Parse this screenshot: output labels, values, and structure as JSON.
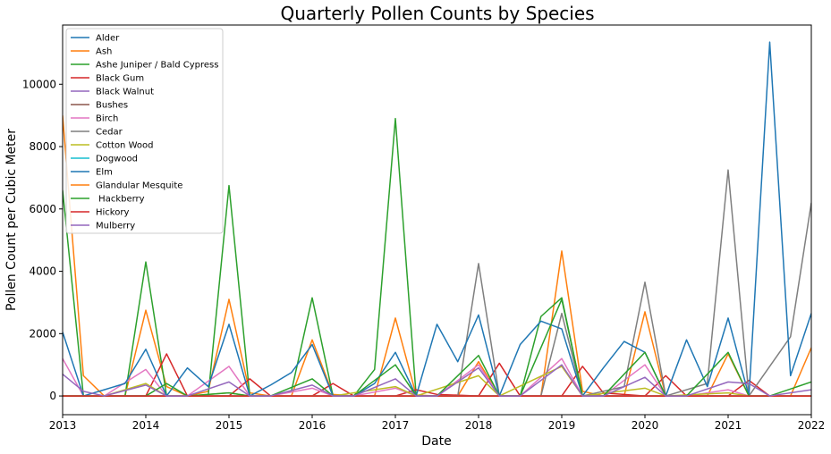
{
  "chart_data": {
    "type": "line",
    "title": "Quarterly Pollen Counts by Species",
    "xlabel": "Date",
    "ylabel": "Pollen Count per Cubic Meter",
    "xlim": [
      2013.0,
      2022.0
    ],
    "ylim": [
      -600,
      11900
    ],
    "x_ticks": [
      "2013",
      "2014",
      "2015",
      "2016",
      "2017",
      "2018",
      "2019",
      "2020",
      "2021",
      "2022"
    ],
    "y_ticks": [
      "0",
      "2000",
      "4000",
      "6000",
      "8000",
      "10000"
    ],
    "y_tick_values": [
      0,
      2000,
      4000,
      6000,
      8000,
      10000
    ],
    "grid": false,
    "legend_position": "upper left",
    "series": [
      {
        "name": "Alder",
        "color": "#1f77b4",
        "x": [
          2013.0,
          2013.25,
          2017.0,
          2018.0,
          2019.0,
          2020.0,
          2021.0,
          2022.0
        ],
        "y": [
          0,
          0,
          0,
          0,
          0,
          0,
          0,
          0
        ]
      },
      {
        "name": "Ash",
        "color": "#ff7f0e",
        "x": [
          2013.0,
          2013.25,
          2013.5,
          2013.75,
          2014.0,
          2014.25,
          2014.5,
          2014.75,
          2015.0,
          2015.25,
          2015.5,
          2015.75,
          2016.0,
          2016.25,
          2016.5,
          2016.75,
          2017.0,
          2017.25,
          2017.5,
          2017.75,
          2018.0,
          2018.25,
          2018.5,
          2018.75,
          2019.0,
          2019.25,
          2019.5,
          2019.75,
          2020.0,
          2020.25,
          2020.5,
          2020.75,
          2021.0,
          2021.25,
          2021.5,
          2021.75,
          2022.0
        ],
        "y": [
          9000,
          650,
          0,
          0,
          2750,
          300,
          0,
          150,
          3100,
          100,
          0,
          0,
          1800,
          50,
          0,
          0,
          2500,
          30,
          0,
          0,
          1100,
          0,
          0,
          0,
          4650,
          150,
          0,
          0,
          2700,
          0,
          0,
          0,
          1350,
          0,
          0,
          0,
          1550
        ]
      },
      {
        "name": "Ashe Juniper / Bald Cypress",
        "color": "#2ca02c",
        "x": [
          2013.0,
          2013.25,
          2013.5,
          2013.75,
          2014.0,
          2014.25,
          2014.5,
          2014.75,
          2015.0,
          2015.25,
          2015.5,
          2015.75,
          2016.0,
          2016.25,
          2016.5,
          2016.75,
          2017.0,
          2017.25,
          2017.5,
          2017.75,
          2018.0,
          2018.25,
          2018.5,
          2018.75,
          2019.0,
          2019.25,
          2019.5,
          2019.75,
          2020.0,
          2020.25,
          2020.5,
          2020.75,
          2021.0,
          2021.25,
          2021.5,
          2021.75,
          2022.0
        ],
        "y": [
          6600,
          0,
          0,
          0,
          4300,
          0,
          0,
          0,
          6750,
          0,
          0,
          150,
          3150,
          0,
          0,
          850,
          8900,
          0,
          0,
          0,
          0,
          0,
          0,
          2550,
          3150,
          0,
          0,
          0,
          0,
          0,
          0,
          0,
          0,
          0,
          0,
          0,
          0
        ]
      },
      {
        "name": "Black Gum",
        "color": "#d62728",
        "x": [
          2013.0,
          2013.25,
          2014.0,
          2014.25,
          2014.5,
          2015.0,
          2015.25,
          2015.5,
          2016.0,
          2016.25,
          2016.5,
          2017.0,
          2017.25,
          2017.5,
          2018.0,
          2018.25,
          2018.5,
          2019.0,
          2019.25,
          2019.5,
          2020.0,
          2020.25,
          2020.5,
          2021.0,
          2021.25,
          2021.5,
          2022.0
        ],
        "y": [
          0,
          0,
          0,
          1350,
          0,
          0,
          550,
          0,
          0,
          400,
          0,
          0,
          200,
          50,
          0,
          1050,
          0,
          0,
          950,
          100,
          0,
          650,
          0,
          0,
          500,
          0,
          0
        ]
      },
      {
        "name": "Black Walnut",
        "color": "#9467bd",
        "x": [
          2013.0,
          2014.0,
          2015.0,
          2016.0,
          2017.0,
          2018.0,
          2019.0,
          2020.0,
          2021.0,
          2022.0
        ],
        "y": [
          0,
          0,
          0,
          0,
          0,
          0,
          0,
          0,
          0,
          0
        ]
      },
      {
        "name": "Bushes",
        "color": "#8c564b",
        "x": [
          2013.0,
          2014.0,
          2015.0,
          2016.0,
          2017.0,
          2018.0,
          2019.0,
          2020.0,
          2021.0,
          2022.0
        ],
        "y": [
          0,
          0,
          0,
          0,
          0,
          0,
          0,
          0,
          0,
          0
        ]
      },
      {
        "name": "Birch",
        "color": "#e377c2",
        "x": [
          2013.0,
          2013.25,
          2013.5,
          2014.0,
          2014.25,
          2014.5,
          2015.0,
          2015.25,
          2015.5,
          2016.0,
          2016.25,
          2016.5,
          2017.0,
          2017.25,
          2017.5,
          2018.0,
          2018.25,
          2018.5,
          2019.0,
          2019.25,
          2019.5,
          2020.0,
          2020.25,
          2020.5,
          2021.0,
          2021.25,
          2021.5,
          2022.0
        ],
        "y": [
          1200,
          0,
          0,
          850,
          0,
          0,
          950,
          0,
          0,
          250,
          0,
          0,
          250,
          0,
          0,
          1000,
          0,
          0,
          1200,
          0,
          0,
          1000,
          0,
          0,
          200,
          0,
          0,
          0
        ]
      },
      {
        "name": "Cedar",
        "color": "#7f7f7f",
        "x": [
          2013.0,
          2013.75,
          2014.0,
          2014.75,
          2015.0,
          2015.75,
          2016.0,
          2016.75,
          2017.0,
          2017.75,
          2018.0,
          2018.25,
          2018.75,
          2019.0,
          2019.25,
          2019.75,
          2020.0,
          2020.25,
          2020.75,
          2021.0,
          2021.25,
          2021.75,
          2022.0
        ],
        "y": [
          0,
          0,
          0,
          0,
          0,
          0,
          0,
          0,
          0,
          0,
          4250,
          0,
          0,
          2650,
          0,
          300,
          3650,
          0,
          400,
          7250,
          0,
          1900,
          6200
        ]
      },
      {
        "name": "Cotton Wood",
        "color": "#bcbd22",
        "x": [
          2013.0,
          2013.25,
          2013.5,
          2014.0,
          2014.25,
          2014.5,
          2015.0,
          2015.25,
          2016.0,
          2016.25,
          2017.0,
          2017.25,
          2018.0,
          2018.25,
          2019.0,
          2019.25,
          2020.0,
          2020.25,
          2021.0,
          2021.25,
          2022.0
        ],
        "y": [
          0,
          0,
          0,
          400,
          0,
          0,
          100,
          0,
          0,
          0,
          300,
          0,
          650,
          0,
          950,
          0,
          250,
          0,
          100,
          0,
          0
        ]
      },
      {
        "name": "Dogwood",
        "color": "#17becf",
        "x": [
          2013.0,
          2014.0,
          2015.0,
          2016.0,
          2017.0,
          2018.0,
          2019.0,
          2020.0,
          2021.0,
          2022.0
        ],
        "y": [
          0,
          0,
          0,
          0,
          0,
          0,
          0,
          0,
          0,
          0
        ]
      },
      {
        "name": "Elm",
        "color": "#1f77b4",
        "x": [
          2013.0,
          2013.25,
          2013.5,
          2013.75,
          2014.0,
          2014.25,
          2014.5,
          2014.75,
          2015.0,
          2015.25,
          2015.5,
          2015.75,
          2016.0,
          2016.25,
          2016.5,
          2016.75,
          2017.0,
          2017.25,
          2017.5,
          2017.75,
          2018.0,
          2018.25,
          2018.5,
          2018.75,
          2019.0,
          2019.25,
          2019.5,
          2019.75,
          2020.0,
          2020.25,
          2020.5,
          2020.75,
          2021.0,
          2021.25,
          2021.5,
          2021.75,
          2022.0
        ],
        "y": [
          2050,
          0,
          200,
          400,
          1500,
          0,
          900,
          300,
          2300,
          0,
          350,
          750,
          1650,
          0,
          0,
          400,
          1400,
          0,
          2300,
          1100,
          2600,
          0,
          1650,
          2400,
          2150,
          0,
          900,
          1750,
          1400,
          0,
          1800,
          300,
          2500,
          0,
          11350,
          650,
          2650
        ]
      },
      {
        "name": "Glandular Mesquite",
        "color": "#ff7f0e",
        "x": [
          2013.0,
          2014.0,
          2015.0,
          2016.0,
          2017.0,
          2018.0,
          2019.0,
          2020.0,
          2021.0,
          2022.0
        ],
        "y": [
          0,
          0,
          0,
          0,
          0,
          0,
          0,
          0,
          0,
          0
        ]
      },
      {
        "name": " Hackberry",
        "color": "#2ca02c",
        "x": [
          2013.0,
          2013.25,
          2013.5,
          2014.0,
          2014.25,
          2014.5,
          2015.0,
          2015.25,
          2015.5,
          2016.0,
          2016.25,
          2016.5,
          2017.0,
          2017.25,
          2017.5,
          2018.0,
          2018.25,
          2018.5,
          2019.0,
          2019.25,
          2019.5,
          2020.0,
          2020.25,
          2020.5,
          2021.0,
          2021.25,
          2021.5,
          2022.0
        ],
        "y": [
          0,
          0,
          0,
          0,
          400,
          0,
          100,
          0,
          0,
          550,
          0,
          0,
          1000,
          0,
          0,
          1300,
          0,
          0,
          3100,
          0,
          0,
          1400,
          0,
          0,
          1400,
          0,
          0,
          450
        ]
      },
      {
        "name": "Hickory",
        "color": "#d62728",
        "x": [
          2013.0,
          2014.0,
          2015.0,
          2016.0,
          2017.0,
          2018.0,
          2019.0,
          2020.0,
          2021.0,
          2022.0
        ],
        "y": [
          0,
          0,
          0,
          0,
          0,
          0,
          0,
          0,
          0,
          0
        ]
      },
      {
        "name": "Mulberry",
        "color": "#9467bd",
        "x": [
          2013.0,
          2013.25,
          2013.5,
          2014.0,
          2014.25,
          2014.5,
          2015.0,
          2015.25,
          2015.5,
          2016.0,
          2016.25,
          2016.5,
          2017.0,
          2017.25,
          2017.5,
          2018.0,
          2018.25,
          2018.5,
          2019.0,
          2019.25,
          2019.5,
          2020.0,
          2020.25,
          2020.5,
          2021.0,
          2021.25,
          2021.5,
          2022.0
        ],
        "y": [
          700,
          150,
          0,
          350,
          0,
          0,
          450,
          0,
          0,
          350,
          0,
          0,
          550,
          0,
          0,
          900,
          0,
          0,
          1000,
          0,
          0,
          600,
          0,
          0,
          450,
          400,
          0,
          200
        ]
      }
    ]
  }
}
